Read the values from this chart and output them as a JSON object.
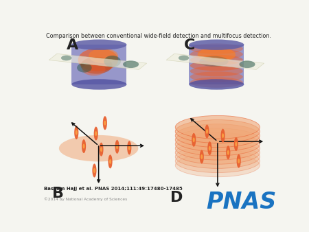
{
  "title": "Comparison between conventional wide-field detection and multifocus detection.",
  "citation": "Bassam Hajj et al. PNAS 2014;111:49:17480-17485",
  "copyright": "©2014 by National Academy of Sciences",
  "pnas_color": "#1a73c1",
  "bg_color": "#f5f5f0",
  "label_A": "A",
  "label_B": "B",
  "label_C": "C",
  "label_D": "D",
  "cyl_body": "#7878be",
  "cyl_top": "#6060a8",
  "cyl_bottom": "#5050a0",
  "orange_light": "#f0a878",
  "orange_mid": "#e86030",
  "orange_bright": "#ff8020",
  "orange_dark": "#c04010",
  "teal": "#2a5a4a",
  "plane_fill": "#eeeedd",
  "plane_edge": "#ccccaa",
  "arrow_color": "#111111"
}
